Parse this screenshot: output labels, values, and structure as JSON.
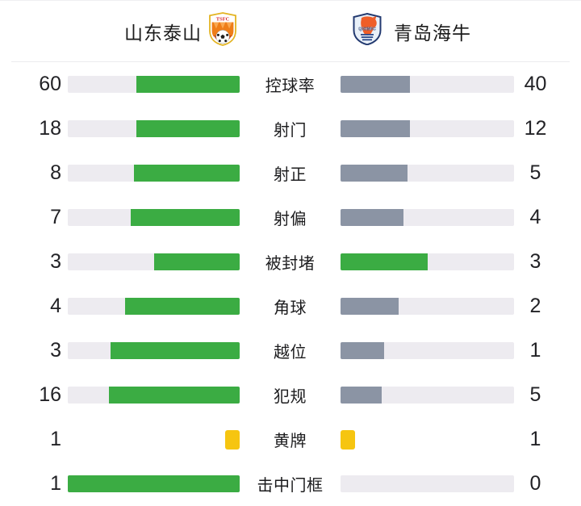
{
  "header": {
    "home": {
      "name": "山东泰山",
      "crest": "shandong-taishan-crest",
      "crest_text": "TSFC"
    },
    "away": {
      "name": "青岛海牛",
      "crest": "qingdao-hainiu-crest",
      "crest_text": "QDHNFC"
    }
  },
  "colors": {
    "green": "#3bac43",
    "grey": "#8b94a4",
    "track": "#edebf0",
    "yellow": "#f6c510"
  },
  "stats": {
    "rows": [
      {
        "label": "控球率",
        "home": "60",
        "away": "40",
        "kind": "bar",
        "home_pct": 60,
        "away_pct": 40,
        "home_color": "green",
        "away_color": "grey"
      },
      {
        "label": "射门",
        "home": "18",
        "away": "12",
        "kind": "bar",
        "home_pct": 60,
        "away_pct": 40,
        "home_color": "green",
        "away_color": "grey"
      },
      {
        "label": "射正",
        "home": "8",
        "away": "5",
        "kind": "bar",
        "home_pct": 61.5,
        "away_pct": 38.5,
        "home_color": "green",
        "away_color": "grey"
      },
      {
        "label": "射偏",
        "home": "7",
        "away": "4",
        "kind": "bar",
        "home_pct": 63.6,
        "away_pct": 36.4,
        "home_color": "green",
        "away_color": "grey"
      },
      {
        "label": "被封堵",
        "home": "3",
        "away": "3",
        "kind": "bar",
        "home_pct": 50,
        "away_pct": 50,
        "home_color": "green",
        "away_color": "green"
      },
      {
        "label": "角球",
        "home": "4",
        "away": "2",
        "kind": "bar",
        "home_pct": 66.7,
        "away_pct": 33.3,
        "home_color": "green",
        "away_color": "grey"
      },
      {
        "label": "越位",
        "home": "3",
        "away": "1",
        "kind": "bar",
        "home_pct": 75,
        "away_pct": 25,
        "home_color": "green",
        "away_color": "grey"
      },
      {
        "label": "犯规",
        "home": "16",
        "away": "5",
        "kind": "bar",
        "home_pct": 76.2,
        "away_pct": 23.8,
        "home_color": "green",
        "away_color": "grey"
      },
      {
        "label": "黄牌",
        "home": "1",
        "away": "1",
        "kind": "card",
        "home_pct": 0,
        "away_pct": 0,
        "home_color": "yellow",
        "away_color": "yellow"
      },
      {
        "label": "击中门框",
        "home": "1",
        "away": "0",
        "kind": "bar",
        "home_pct": 100,
        "away_pct": 0,
        "home_color": "green",
        "away_color": "grey"
      }
    ]
  },
  "chart_data": {
    "type": "bar",
    "variant": "head-to-head match statistics",
    "title": "山东泰山 vs 青岛海牛",
    "legend_position": "top",
    "grid": false,
    "categories": [
      "控球率",
      "射门",
      "射正",
      "射偏",
      "被封堵",
      "角球",
      "越位",
      "犯规",
      "黄牌",
      "击中门框"
    ],
    "series": [
      {
        "name": "山东泰山",
        "values": [
          60,
          18,
          8,
          7,
          3,
          4,
          3,
          16,
          1,
          1
        ],
        "color": "#3bac43"
      },
      {
        "name": "青岛海牛",
        "values": [
          40,
          12,
          5,
          4,
          3,
          2,
          1,
          5,
          1,
          0
        ],
        "color": "#8b94a4"
      }
    ],
    "notes": "Each row is a mirrored bar pair filled proportionally to value/(home+away); away bar turns green when values are equal; 黄牌 row shows yellow-card squares instead of bars"
  }
}
